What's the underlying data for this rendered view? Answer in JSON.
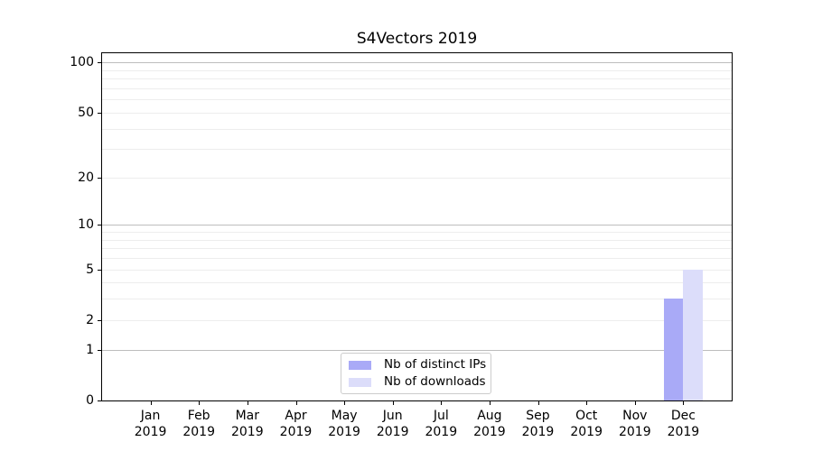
{
  "chart_data": {
    "type": "bar",
    "title": "S4Vectors 2019",
    "categories": [
      {
        "month": "Jan",
        "year": "2019"
      },
      {
        "month": "Feb",
        "year": "2019"
      },
      {
        "month": "Mar",
        "year": "2019"
      },
      {
        "month": "Apr",
        "year": "2019"
      },
      {
        "month": "May",
        "year": "2019"
      },
      {
        "month": "Jun",
        "year": "2019"
      },
      {
        "month": "Jul",
        "year": "2019"
      },
      {
        "month": "Aug",
        "year": "2019"
      },
      {
        "month": "Sep",
        "year": "2019"
      },
      {
        "month": "Oct",
        "year": "2019"
      },
      {
        "month": "Nov",
        "year": "2019"
      },
      {
        "month": "Dec",
        "year": "2019"
      }
    ],
    "series": [
      {
        "name": "Nb of distinct IPs",
        "color": "#a9aaf7",
        "values": [
          0,
          0,
          0,
          0,
          0,
          0,
          0,
          0,
          0,
          0,
          0,
          3
        ]
      },
      {
        "name": "Nb of downloads",
        "color": "#dcddfa",
        "values": [
          0,
          0,
          0,
          0,
          0,
          0,
          0,
          0,
          0,
          0,
          0,
          5
        ]
      }
    ],
    "xlabel": "",
    "ylabel": "",
    "yscale": "log10(1+x)",
    "yticks": [
      0,
      1,
      2,
      5,
      10,
      20,
      50,
      100
    ],
    "ylim": [
      0,
      100
    ],
    "grid": "horizontal log minor+major",
    "legend_position": "bottom-center-inside"
  },
  "colors": {
    "major_gridline": "#bdbdbd",
    "minor_gridline": "#ededed",
    "axis": "#000000",
    "legend_border": "#cccccc"
  }
}
